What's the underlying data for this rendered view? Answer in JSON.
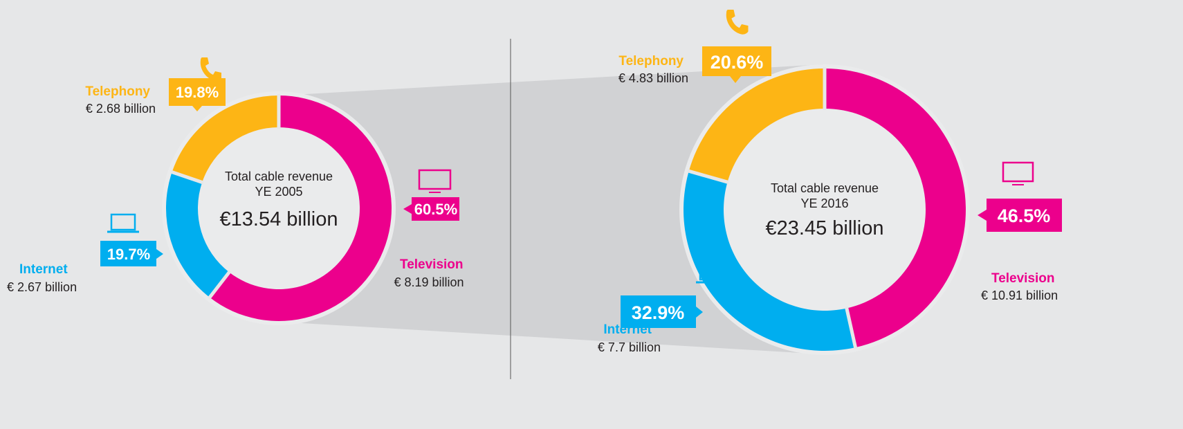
{
  "colors": {
    "television": "#EC008C",
    "internet": "#00AEEF",
    "telephony": "#FDB515",
    "background": "#E6E7E8",
    "shading": "#D1D2D4"
  },
  "chart_data": {
    "type": "pie",
    "variant": "donut",
    "charts": [
      {
        "center_label": "Total cable revenue",
        "year_label": "YE 2005",
        "total": "€13.54 billion",
        "total_value": 13.54,
        "segments": [
          {
            "name": "Television",
            "percent": 60.5,
            "value": 8.19,
            "amount_label": "€ 8.19 billion",
            "percent_label": "60.5%",
            "icon": "tv-icon"
          },
          {
            "name": "Internet",
            "percent": 19.7,
            "value": 2.67,
            "amount_label": "€ 2.67 billion",
            "percent_label": "19.7%",
            "icon": "laptop-icon"
          },
          {
            "name": "Telephony",
            "percent": 19.8,
            "value": 2.68,
            "amount_label": "€ 2.68 billion",
            "percent_label": "19.8%",
            "icon": "phone-icon"
          }
        ]
      },
      {
        "center_label": "Total cable revenue",
        "year_label": "YE 2016",
        "total": "€23.45 billion",
        "total_value": 23.45,
        "segments": [
          {
            "name": "Television",
            "percent": 46.5,
            "value": 10.91,
            "amount_label": "€ 10.91 billion",
            "percent_label": "46.5%",
            "icon": "tv-icon"
          },
          {
            "name": "Internet",
            "percent": 32.9,
            "value": 7.7,
            "amount_label": "€ 7.7 billion",
            "percent_label": "32.9%",
            "icon": "laptop-icon"
          },
          {
            "name": "Telephony",
            "percent": 20.6,
            "value": 4.83,
            "amount_label": "€ 4.83 billion",
            "percent_label": "20.6%",
            "icon": "phone-icon"
          }
        ]
      }
    ]
  }
}
